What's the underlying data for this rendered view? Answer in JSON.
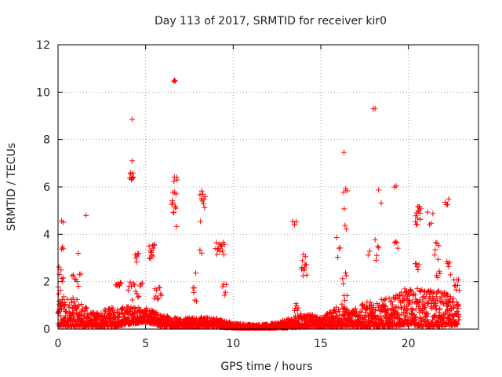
{
  "chart_data": {
    "type": "scatter",
    "title": "Day 113 of 2017, SRMTID for receiver kir0",
    "xlabel": "GPS time / hours",
    "ylabel": "SRMTID / TECUs",
    "xlim": [
      0,
      24
    ],
    "ylim": [
      0,
      12
    ],
    "xticks": [
      0,
      5,
      10,
      15,
      20
    ],
    "yticks": [
      0,
      2,
      4,
      6,
      8,
      10,
      12
    ],
    "grid": true,
    "marker": "+",
    "color": "#ff0000",
    "series": [
      {
        "name": "SRMTID",
        "clusters": [
          {
            "x0": 0.0,
            "x1": 0.3,
            "y0": 1.6,
            "y1": 2.7,
            "n": 8
          },
          {
            "x0": 0.2,
            "x1": 0.3,
            "y0": 3.3,
            "y1": 3.5,
            "n": 3
          },
          {
            "x0": 0.2,
            "x1": 0.3,
            "y0": 4.5,
            "y1": 4.6,
            "n": 2
          },
          {
            "x0": 0.8,
            "x1": 1.3,
            "y0": 1.6,
            "y1": 2.4,
            "n": 8
          },
          {
            "x0": 1.1,
            "x1": 1.2,
            "y0": 3.2,
            "y1": 3.2,
            "n": 1
          },
          {
            "x0": 1.6,
            "x1": 1.6,
            "y0": 4.8,
            "y1": 4.8,
            "n": 1
          },
          {
            "x0": 3.3,
            "x1": 3.6,
            "y0": 1.8,
            "y1": 2.0,
            "n": 8
          },
          {
            "x0": 4.1,
            "x1": 4.3,
            "y0": 6.2,
            "y1": 6.6,
            "n": 8
          },
          {
            "x0": 4.2,
            "x1": 4.25,
            "y0": 7.1,
            "y1": 7.1,
            "n": 1
          },
          {
            "x0": 4.2,
            "x1": 4.25,
            "y0": 8.85,
            "y1": 8.85,
            "n": 1
          },
          {
            "x0": 4.0,
            "x1": 4.8,
            "y0": 1.2,
            "y1": 2.0,
            "n": 14
          },
          {
            "x0": 4.4,
            "x1": 4.6,
            "y0": 2.8,
            "y1": 3.2,
            "n": 6
          },
          {
            "x0": 5.2,
            "x1": 5.5,
            "y0": 2.9,
            "y1": 3.6,
            "n": 12
          },
          {
            "x0": 5.5,
            "x1": 5.9,
            "y0": 1.2,
            "y1": 2.0,
            "n": 10
          },
          {
            "x0": 6.5,
            "x1": 6.8,
            "y0": 4.3,
            "y1": 6.5,
            "n": 16
          },
          {
            "x0": 6.6,
            "x1": 6.7,
            "y0": 10.4,
            "y1": 10.55,
            "n": 3
          },
          {
            "x0": 7.7,
            "x1": 7.9,
            "y0": 0.8,
            "y1": 2.6,
            "n": 6
          },
          {
            "x0": 8.1,
            "x1": 8.4,
            "y0": 4.5,
            "y1": 5.9,
            "n": 10
          },
          {
            "x0": 8.1,
            "x1": 8.2,
            "y0": 3.2,
            "y1": 3.4,
            "n": 2
          },
          {
            "x0": 9.0,
            "x1": 9.5,
            "y0": 3.1,
            "y1": 3.7,
            "n": 14
          },
          {
            "x0": 9.4,
            "x1": 9.6,
            "y0": 1.4,
            "y1": 1.9,
            "n": 5
          },
          {
            "x0": 13.4,
            "x1": 13.6,
            "y0": 4.4,
            "y1": 4.6,
            "n": 3
          },
          {
            "x0": 13.5,
            "x1": 13.7,
            "y0": 0.7,
            "y1": 1.2,
            "n": 6
          },
          {
            "x0": 13.9,
            "x1": 14.2,
            "y0": 2.0,
            "y1": 3.5,
            "n": 12
          },
          {
            "x0": 15.9,
            "x1": 16.1,
            "y0": 3.0,
            "y1": 4.5,
            "n": 4
          },
          {
            "x0": 16.3,
            "x1": 16.5,
            "y0": 4.0,
            "y1": 6.0,
            "n": 6
          },
          {
            "x0": 16.3,
            "x1": 16.35,
            "y0": 7.45,
            "y1": 7.45,
            "n": 1
          },
          {
            "x0": 16.2,
            "x1": 16.5,
            "y0": 1.0,
            "y1": 2.5,
            "n": 8
          },
          {
            "x0": 17.7,
            "x1": 17.8,
            "y0": 3.1,
            "y1": 3.3,
            "n": 2
          },
          {
            "x0": 18.0,
            "x1": 18.1,
            "y0": 8.9,
            "y1": 9.35,
            "n": 2
          },
          {
            "x0": 18.1,
            "x1": 18.3,
            "y0": 2.9,
            "y1": 3.8,
            "n": 5
          },
          {
            "x0": 18.3,
            "x1": 18.45,
            "y0": 5.3,
            "y1": 5.95,
            "n": 2
          },
          {
            "x0": 19.2,
            "x1": 19.3,
            "y0": 5.9,
            "y1": 6.05,
            "n": 2
          },
          {
            "x0": 19.2,
            "x1": 19.4,
            "y0": 3.4,
            "y1": 3.7,
            "n": 4
          },
          {
            "x0": 20.4,
            "x1": 20.7,
            "y0": 4.3,
            "y1": 5.2,
            "n": 14
          },
          {
            "x0": 20.4,
            "x1": 20.6,
            "y0": 2.5,
            "y1": 3.0,
            "n": 5
          },
          {
            "x0": 21.1,
            "x1": 21.4,
            "y0": 4.4,
            "y1": 4.95,
            "n": 4
          },
          {
            "x0": 21.5,
            "x1": 21.8,
            "y0": 2.0,
            "y1": 3.7,
            "n": 10
          },
          {
            "x0": 22.1,
            "x1": 22.3,
            "y0": 5.2,
            "y1": 5.5,
            "n": 4
          },
          {
            "x0": 22.2,
            "x1": 22.4,
            "y0": 2.0,
            "y1": 3.0,
            "n": 5
          },
          {
            "x0": 22.6,
            "x1": 22.9,
            "y0": 1.5,
            "y1": 2.1,
            "n": 8
          }
        ],
        "baseline": [
          {
            "x": 0.0,
            "lo": 0.1,
            "hi": 1.5
          },
          {
            "x": 1.0,
            "lo": 0.1,
            "hi": 1.3
          },
          {
            "x": 2.0,
            "lo": 0.1,
            "hi": 0.7
          },
          {
            "x": 3.0,
            "lo": 0.1,
            "hi": 0.9
          },
          {
            "x": 4.0,
            "lo": 0.2,
            "hi": 1.0
          },
          {
            "x": 5.0,
            "lo": 0.3,
            "hi": 0.9
          },
          {
            "x": 6.0,
            "lo": 0.1,
            "hi": 0.6
          },
          {
            "x": 7.0,
            "lo": 0.1,
            "hi": 0.5
          },
          {
            "x": 8.0,
            "lo": 0.1,
            "hi": 0.5
          },
          {
            "x": 9.0,
            "lo": 0.1,
            "hi": 0.5
          },
          {
            "x": 10.0,
            "lo": 0.05,
            "hi": 0.25
          },
          {
            "x": 11.0,
            "lo": 0.05,
            "hi": 0.2
          },
          {
            "x": 12.0,
            "lo": 0.05,
            "hi": 0.2
          },
          {
            "x": 13.0,
            "lo": 0.05,
            "hi": 0.4
          },
          {
            "x": 14.0,
            "lo": 0.1,
            "hi": 0.7
          },
          {
            "x": 15.0,
            "lo": 0.1,
            "hi": 0.5
          },
          {
            "x": 16.0,
            "lo": 0.1,
            "hi": 1.0
          },
          {
            "x": 17.0,
            "lo": 0.1,
            "hi": 0.9
          },
          {
            "x": 18.0,
            "lo": 0.1,
            "hi": 1.3
          },
          {
            "x": 19.0,
            "lo": 0.1,
            "hi": 1.3
          },
          {
            "x": 20.0,
            "lo": 0.2,
            "hi": 1.8
          },
          {
            "x": 21.0,
            "lo": 0.1,
            "hi": 1.7
          },
          {
            "x": 22.0,
            "lo": 0.1,
            "hi": 1.6
          },
          {
            "x": 22.9,
            "lo": 0.2,
            "hi": 1.2
          }
        ]
      }
    ]
  }
}
